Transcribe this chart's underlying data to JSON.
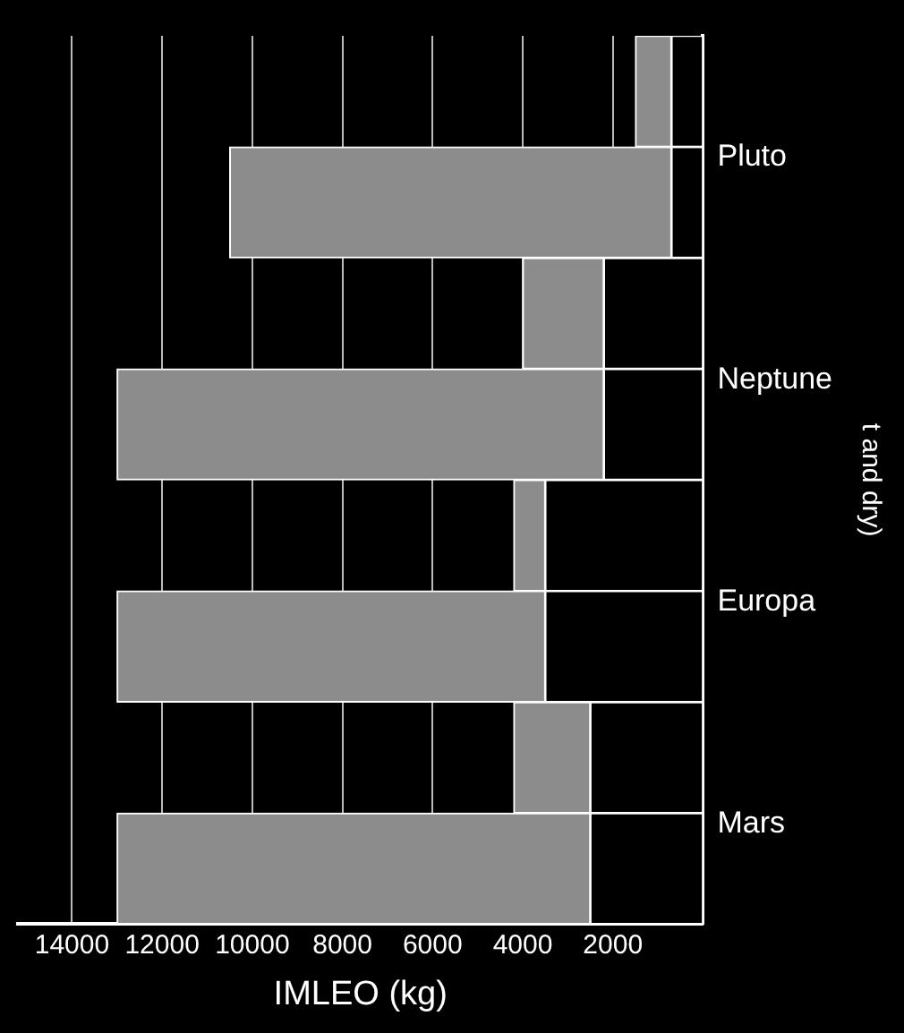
{
  "chart_data": {
    "type": "bar",
    "orientation": "horizontal",
    "stacked": true,
    "categories": [
      null,
      "Pluto",
      null,
      "Neptune",
      null,
      "Europa",
      null,
      "Mars"
    ],
    "series": [
      {
        "color": "#000000",
        "values": [
          700,
          700,
          2200,
          2200,
          3500,
          3500,
          2500,
          2500
        ]
      },
      {
        "color": "#8c8c8c",
        "values": [
          800,
          9800,
          1800,
          10800,
          700,
          9500,
          1700,
          10500
        ]
      }
    ],
    "xlabel": "IMLEO (kg)",
    "ylabel": "t and dry)",
    "xlim": [
      15200,
      0
    ],
    "xticks": [
      14000,
      12000,
      10000,
      8000,
      6000,
      4000,
      2000
    ],
    "grid": "x"
  }
}
